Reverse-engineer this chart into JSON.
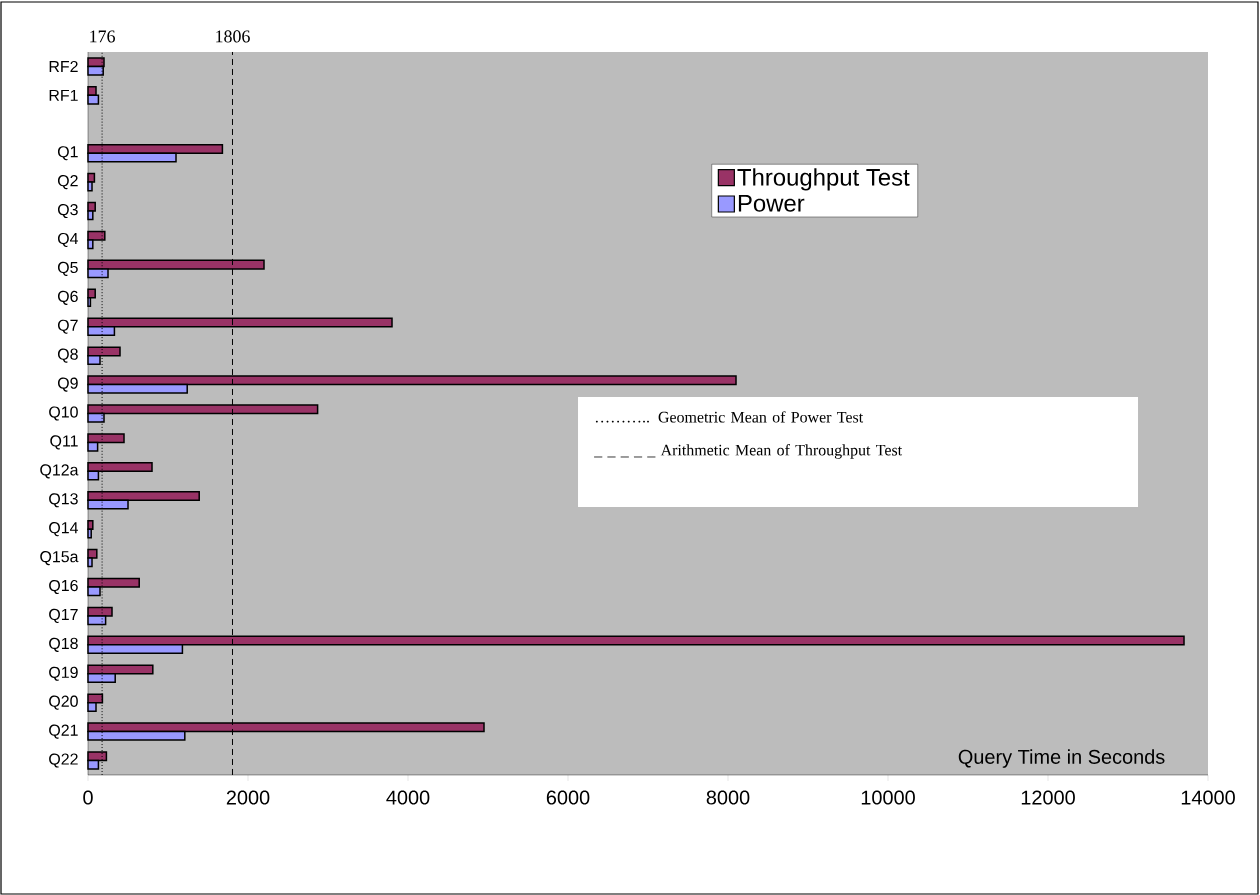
{
  "chart_data": {
    "type": "bar",
    "orientation": "horizontal",
    "categories": [
      "RF2",
      "RF1",
      null,
      "Q1",
      "Q2",
      "Q3",
      "Q4",
      "Q5",
      "Q6",
      "Q7",
      "Q8",
      "Q9",
      "Q10",
      "Q11",
      "Q12a",
      "Q13",
      "Q14",
      "Q15a",
      "Q16",
      "Q17",
      "Q18",
      "Q19",
      "Q20",
      "Q21",
      "Q22"
    ],
    "series": [
      {
        "name": "Throughput Test",
        "color": "#993366",
        "values": [
          200,
          100,
          null,
          1680,
          80,
          90,
          210,
          2200,
          90,
          3800,
          400,
          8100,
          2870,
          450,
          800,
          1390,
          60,
          110,
          640,
          300,
          13700,
          810,
          180,
          4950,
          230
        ]
      },
      {
        "name": "Power",
        "color": "#9999ff",
        "values": [
          190,
          130,
          null,
          1100,
          50,
          60,
          60,
          250,
          30,
          330,
          150,
          1240,
          200,
          120,
          130,
          500,
          40,
          50,
          150,
          220,
          1180,
          340,
          100,
          1210,
          130
        ]
      }
    ],
    "xlim": [
      0,
      14000
    ],
    "xticks": [
      0,
      2000,
      4000,
      6000,
      8000,
      10000,
      12000,
      14000
    ],
    "xlabel": "Query Time in Seconds",
    "legend": "top right",
    "ref_lines": [
      {
        "axis": "x",
        "value": 176,
        "label": "176",
        "line_style": "dotted"
      },
      {
        "axis": "x",
        "value": 1806,
        "label": "1806",
        "line_style": "dashed"
      }
    ],
    "annotations": [
      "……….. Geometric Mean of Power Test",
      "_ _ _ _ _ Arithmetic Mean of Throughput Test"
    ]
  }
}
